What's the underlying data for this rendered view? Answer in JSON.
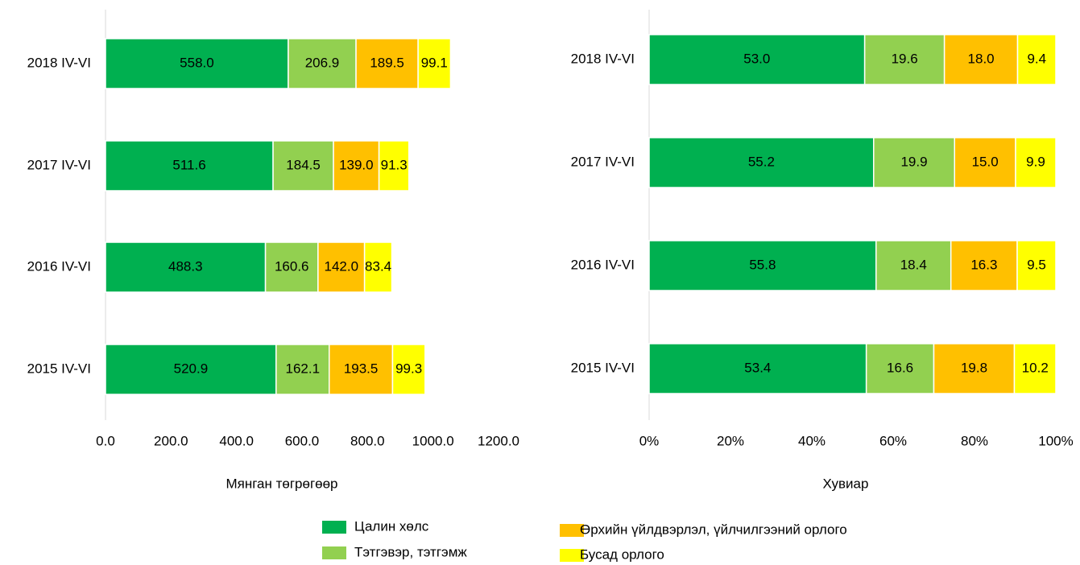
{
  "chart_data": [
    {
      "type": "stacked-bar-horizontal",
      "x_label": "Мянган төгрөгөөр",
      "categories": [
        "2018 IV-VI",
        "2017 IV-VI",
        "2016 IV-VI",
        "2015 IV-VI"
      ],
      "xlim": [
        0,
        1200
      ],
      "xticks": [
        {
          "value": 0,
          "label": "0.0"
        },
        {
          "value": 200,
          "label": "200.0"
        },
        {
          "value": 400,
          "label": "400.0"
        },
        {
          "value": 600,
          "label": "600.0"
        },
        {
          "value": 800,
          "label": "800.0"
        },
        {
          "value": 1000,
          "label": "1000.0"
        },
        {
          "value": 1200,
          "label": "1200.0"
        }
      ],
      "series": [
        {
          "name": "Цалин хөлс",
          "color": "#00b050",
          "values": [
            558,
            511.6,
            488.3,
            520.9
          ],
          "value_labels": [
            "558.0",
            "511.6",
            "488.3",
            "520.9"
          ]
        },
        {
          "name": "Тэтгэвэр, тэтгэмж",
          "color": "#92d050",
          "values": [
            206.9,
            184.5,
            160.6,
            162.1
          ],
          "value_labels": [
            "206.9",
            "184.5",
            "160.6",
            "162.1"
          ]
        },
        {
          "name": "Өрхийн үйлдвэрлэл, үйлчилгээний орлого",
          "color": "#ffc000",
          "values": [
            189.5,
            139,
            142,
            193.5
          ],
          "value_labels": [
            "189.5",
            "139.0",
            "142.0",
            "193.5"
          ]
        },
        {
          "name": "Бусад орлого",
          "color": "#ffff00",
          "values": [
            99.1,
            91.3,
            83.4,
            99.3
          ],
          "value_labels": [
            "99.1",
            "91.3",
            "83.4",
            "99.3"
          ]
        }
      ]
    },
    {
      "type": "stacked-bar-horizontal",
      "x_label": "Хувиар",
      "categories": [
        "2018 IV-VI",
        "2017 IV-VI",
        "2016 IV-VI",
        "2015 IV-VI"
      ],
      "xlim": [
        0,
        100
      ],
      "xticks": [
        {
          "value": 0,
          "label": "0%"
        },
        {
          "value": 20,
          "label": "20%"
        },
        {
          "value": 40,
          "label": "40%"
        },
        {
          "value": 60,
          "label": "60%"
        },
        {
          "value": 80,
          "label": "80%"
        },
        {
          "value": 100,
          "label": "100%"
        }
      ],
      "series": [
        {
          "color": "#00b050",
          "values": [
            53,
            55.2,
            55.8,
            53.4
          ],
          "value_labels": [
            "53.0",
            "55.2",
            "55.8",
            "53.4"
          ]
        },
        {
          "color": "#92d050",
          "values": [
            19.6,
            19.9,
            18.4,
            16.6
          ],
          "value_labels": [
            "19.6",
            "19.9",
            "18.4",
            "16.6"
          ]
        },
        {
          "color": "#ffc000",
          "values": [
            18,
            15,
            16.3,
            19.8
          ],
          "value_labels": [
            "18.0",
            "15.0",
            "16.3",
            "19.8"
          ]
        },
        {
          "color": "#ffff00",
          "values": [
            9.4,
            9.9,
            9.5,
            10.2
          ],
          "value_labels": [
            "9.4",
            "9.9",
            "9.5",
            "10.2"
          ]
        }
      ]
    }
  ]
}
